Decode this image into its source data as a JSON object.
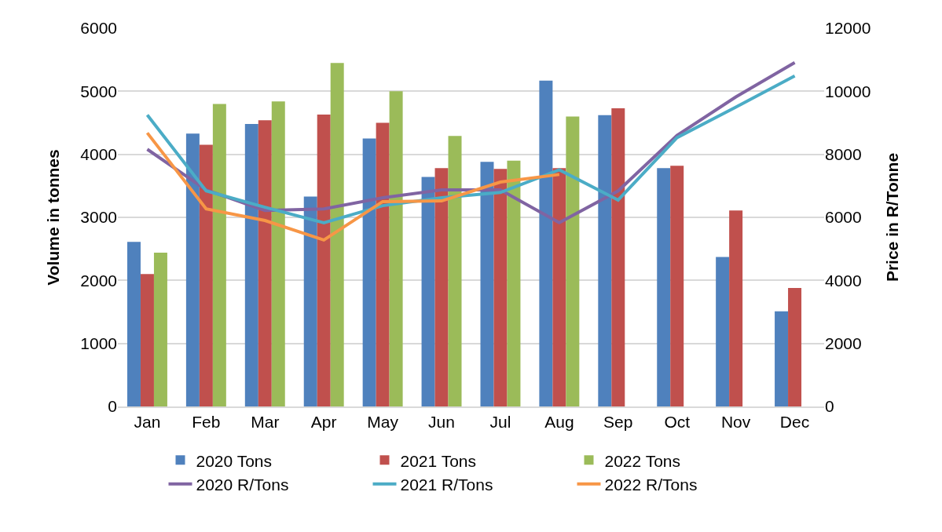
{
  "chart_data": {
    "type": "bar",
    "categories": [
      "Jan",
      "Feb",
      "Mar",
      "Apr",
      "May",
      "Jun",
      "Jul",
      "Aug",
      "Sep",
      "Oct",
      "Nov",
      "Dec"
    ],
    "ylabel": "Volume in tonnes",
    "y2label": "Price in R/Tonne",
    "ylim": [
      0,
      6000
    ],
    "yticks": [
      0,
      1000,
      2000,
      3000,
      4000,
      5000,
      6000
    ],
    "y2lim": [
      0,
      12000
    ],
    "y2ticks": [
      0,
      2000,
      4000,
      6000,
      8000,
      10000,
      12000
    ],
    "grid": "y",
    "legend": "bottom",
    "marker": "none",
    "line_style": "solid",
    "series": [
      {
        "name": "2020 Tons",
        "color": "#4f81bd",
        "values": [
          2610,
          4330,
          4480,
          3330,
          4250,
          3640,
          3880,
          5170,
          4620,
          3780,
          2370,
          1510
        ]
      },
      {
        "name": "2021 Tons",
        "color": "#c0504d",
        "values": [
          2100,
          4150,
          4540,
          4630,
          4500,
          3780,
          3770,
          3780,
          4730,
          3820,
          3110,
          1880
        ]
      },
      {
        "name": "2022 Tons",
        "color": "#9bbb59",
        "values": [
          2440,
          4800,
          4840,
          5450,
          5000,
          4290,
          3900,
          4600,
          null,
          null,
          null,
          null
        ]
      },
      {
        "name": "2020 R/Tons",
        "type": "line",
        "axis": "y2",
        "color": "#8064a2",
        "values": [
          8160,
          6870,
          6220,
          6270,
          6620,
          6870,
          6870,
          5830,
          6840,
          8600,
          9820,
          10910
        ]
      },
      {
        "name": "2021 R/Tons",
        "type": "line",
        "axis": "y2",
        "color": "#4bacc6",
        "values": [
          9250,
          6840,
          6320,
          5830,
          6370,
          6620,
          6790,
          7510,
          6550,
          8530,
          9500,
          10490
        ]
      },
      {
        "name": "2022 R/Tons",
        "type": "line",
        "axis": "y2",
        "color": "#f79646",
        "values": [
          8680,
          6270,
          5900,
          5280,
          6500,
          6520,
          7120,
          7360,
          null,
          null,
          null,
          null
        ]
      }
    ]
  }
}
